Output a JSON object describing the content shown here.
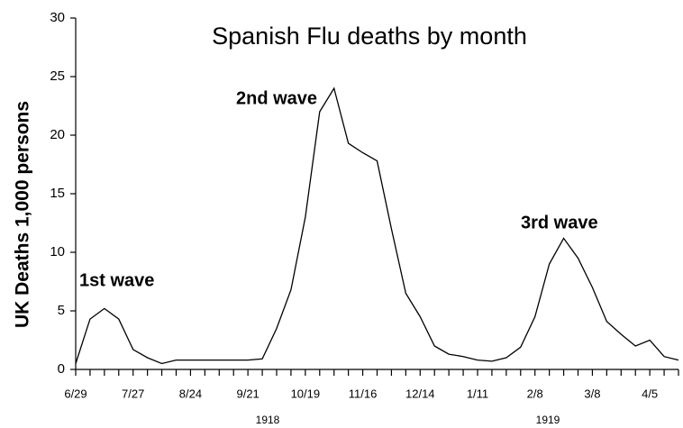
{
  "chart_data": {
    "type": "line",
    "title": "Spanish Flu deaths by month",
    "y_label": "UK Deaths 1,000 persons",
    "categories": [
      "6/29",
      null,
      null,
      null,
      "7/27",
      null,
      null,
      null,
      "8/24",
      null,
      null,
      null,
      "9/21",
      null,
      null,
      null,
      "10/19",
      null,
      null,
      null,
      "11/16",
      null,
      null,
      null,
      "12/14",
      null,
      null,
      null,
      "1/11",
      null,
      null,
      null,
      "2/8",
      null,
      null,
      null,
      "3/8",
      null,
      null,
      null,
      "4/5",
      null,
      null
    ],
    "series": [
      {
        "name": "UK deaths",
        "color": "#000000",
        "values": [
          0.5,
          4.3,
          5.2,
          4.3,
          1.7,
          1.0,
          0.5,
          0.8,
          0.8,
          0.8,
          0.8,
          0.8,
          0.8,
          0.9,
          3.5,
          6.8,
          13,
          22,
          24,
          19.3,
          18.5,
          17.8,
          12,
          6.5,
          4.5,
          2,
          1.3,
          1.1,
          0.8,
          0.7,
          1,
          1.9,
          4.5,
          9,
          11.2,
          9.5,
          7,
          4.1,
          3,
          2,
          2.5,
          1.1,
          0.8
        ]
      }
    ],
    "ylim": [
      0,
      30
    ],
    "yticks": [
      0,
      5,
      10,
      15,
      20,
      25,
      30
    ],
    "annotations": [
      "1st wave",
      "2nd wave",
      "3rd wave"
    ],
    "year_labels": [
      "1918",
      "1919"
    ],
    "grid": false
  }
}
